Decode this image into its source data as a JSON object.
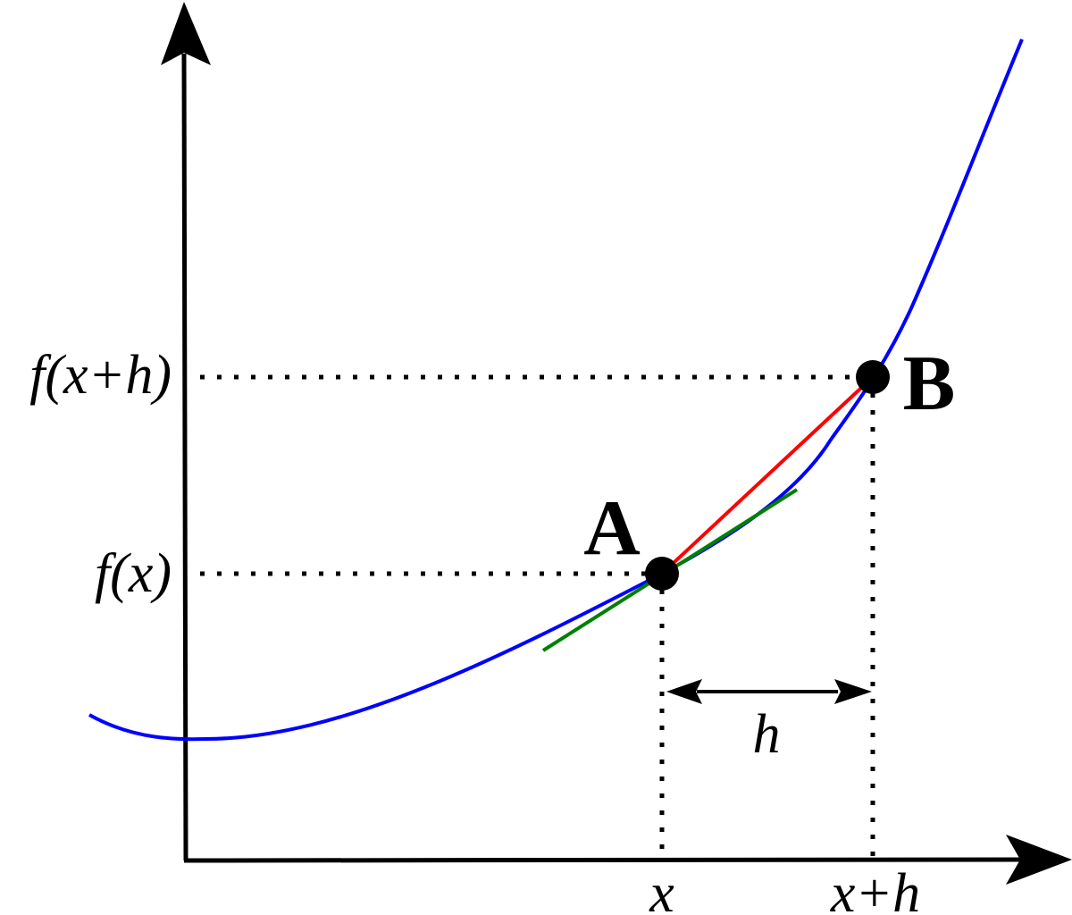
{
  "labels": {
    "y_high": "f(x+h)",
    "y_low": "f(x)",
    "x_low": "x",
    "x_high": "x+h",
    "step": "h",
    "point_a": "A",
    "point_b": "B"
  },
  "colors": {
    "curve": "#0000ff",
    "secant": "#ff0000",
    "tangent": "#008000",
    "axes": "#000000",
    "guides": "#000000"
  }
}
